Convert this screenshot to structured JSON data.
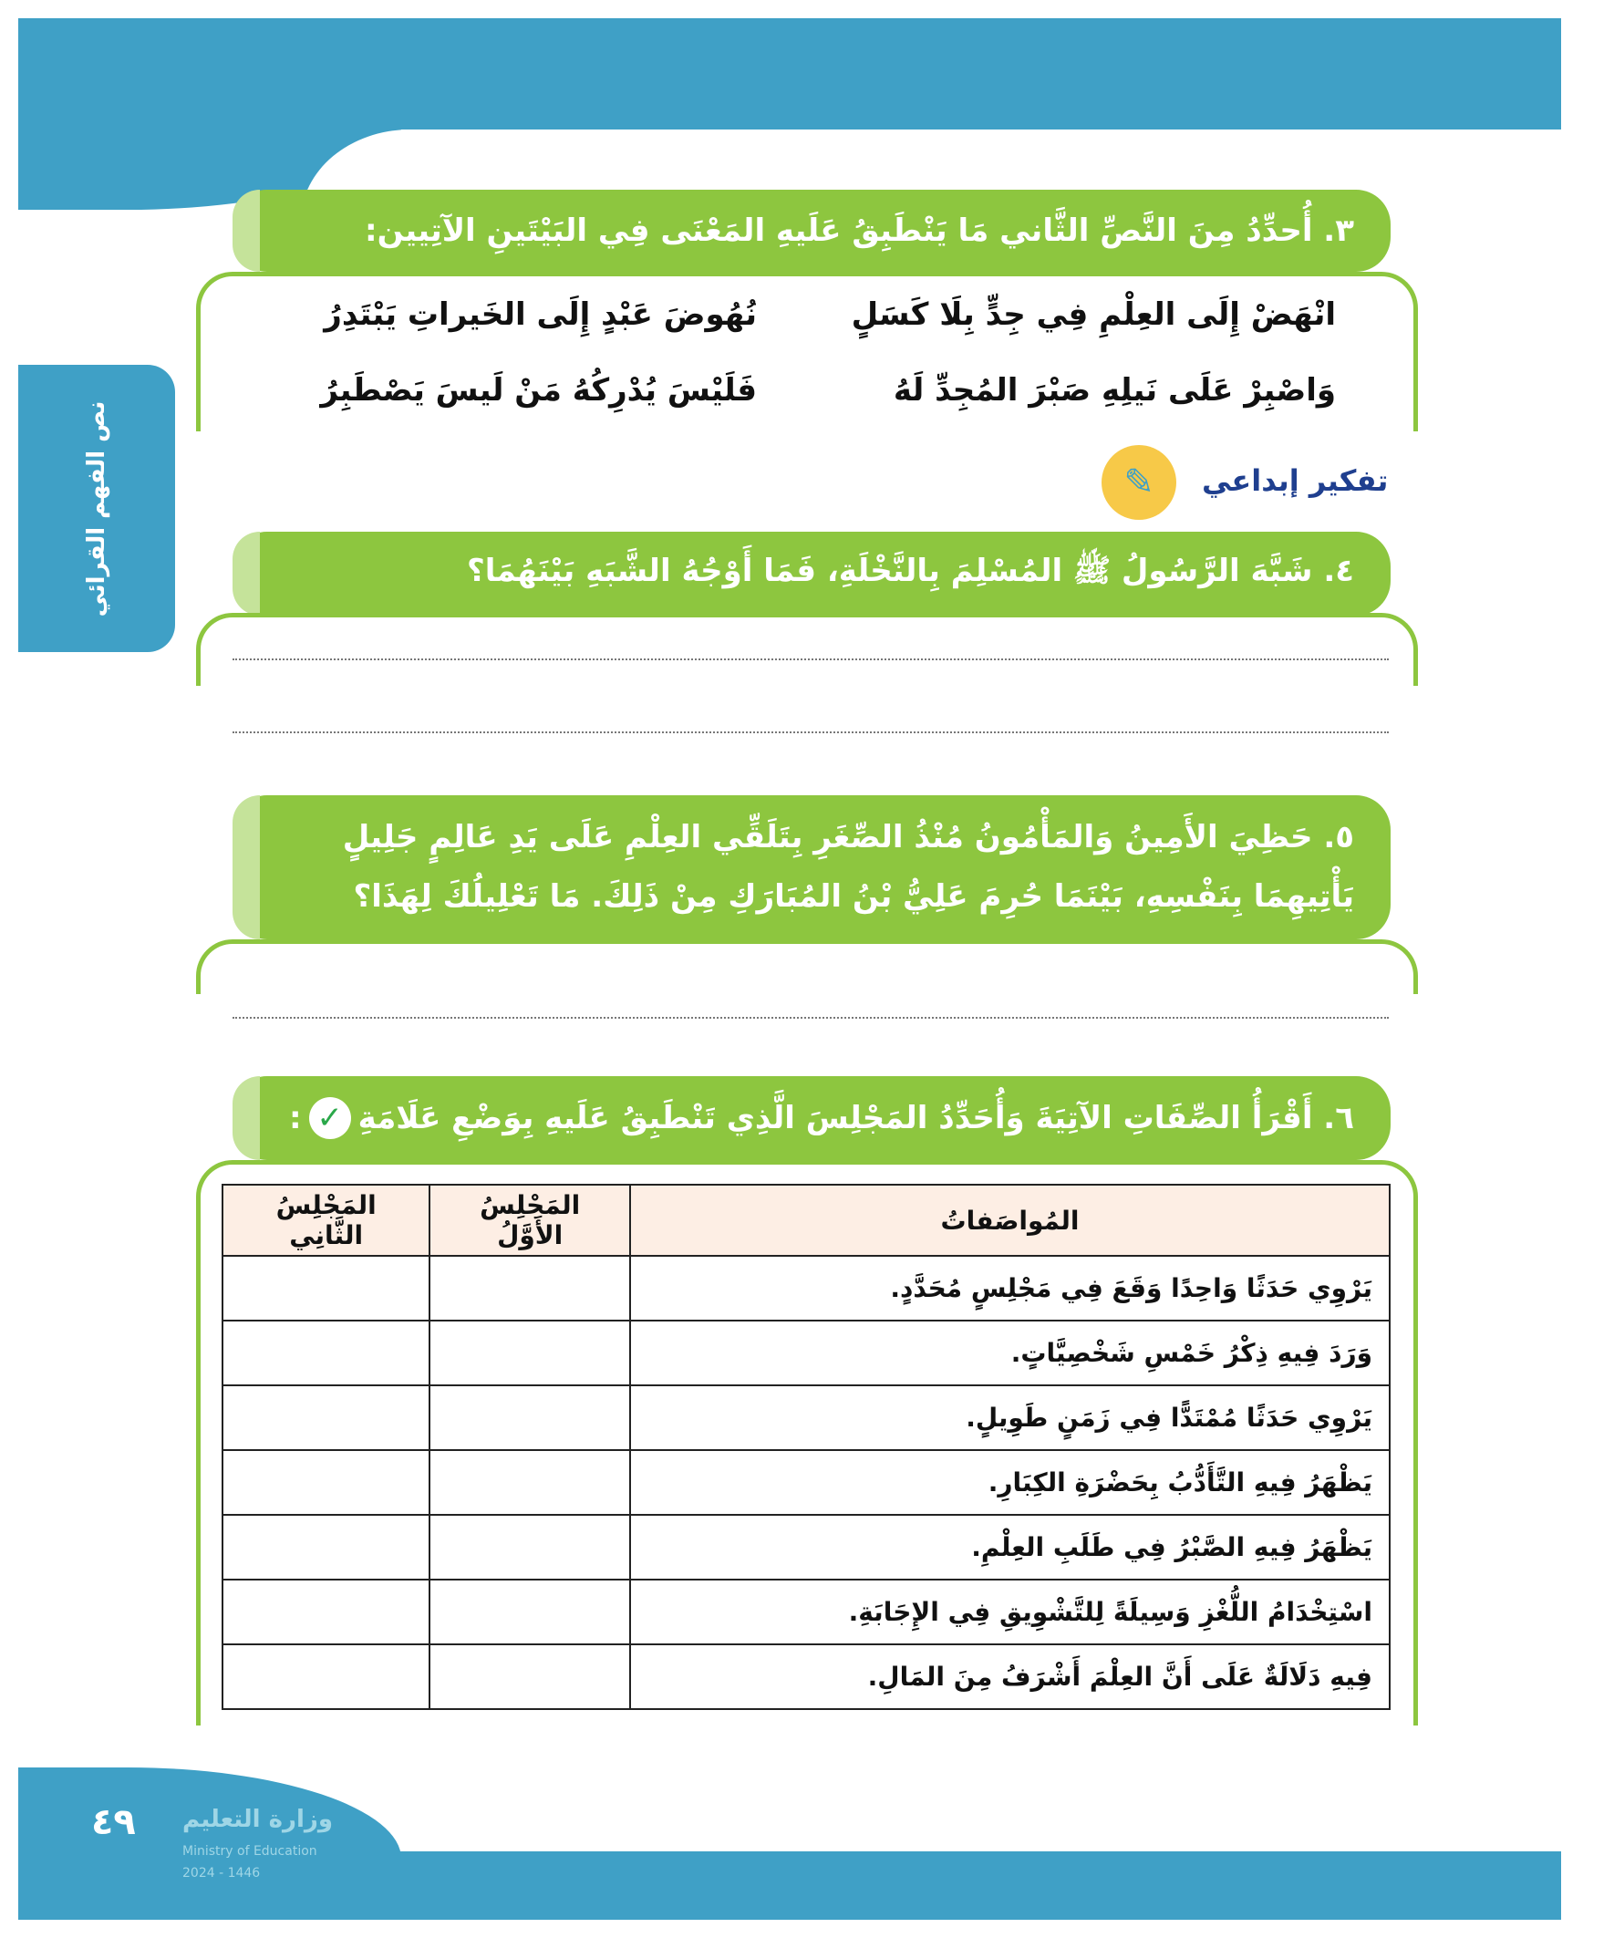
{
  "side_tab": "نص الفهم القرائي",
  "q3": {
    "title": "٣. أُحدِّدُ مِنَ النَّصِّ الثَّاني مَا يَنْطَبِقُ عَلَيهِ المَعْنَى فِي البَيْتَينِ الآتِيين:",
    "verses": [
      [
        "انْهَضْ إِلَى العِلْمِ فِي جِدٍّ بِلَا كَسَلٍ",
        "نُهُوضَ عَبْدٍ إِلَى الخَيراتِ يَبْتَدِرُ"
      ],
      [
        "وَاصْبِرْ عَلَى نَيلِهِ صَبْرَ المُجِدِّ لَهُ",
        "فَلَيْسَ يُدْرِكُهُ مَنْ لَيسَ يَصْطَبِرُ"
      ]
    ]
  },
  "creative": {
    "label": "تفكير إبداعي"
  },
  "q4": {
    "title": "٤. شَبَّهَ الرَّسُولُ ﷺ المُسْلِمَ بِالنَّخْلَةِ، فَمَا أَوْجُهُ الشَّبَهِ بَيْنَهُمَا؟"
  },
  "q5": {
    "title": "٥. حَظِيَ الأَمِينُ وَالمَأْمُونُ مُنْذُ الصِّغَرِ بِتَلَقِّي العِلْمِ عَلَى يَدِ عَالِمٍ جَلِيلٍ يَأْتِيهِمَا بِنَفْسِهِ، بَيْنَمَا حُرِمَ عَلِيُّ بْنُ المُبَارَكِ مِنْ ذَلِكَ. مَا تَعْلِيلُكَ لِهَذَا؟"
  },
  "q6": {
    "title": "٦. أَقْرَأُ الصِّفَاتِ الآتِيَةَ وَأُحَدِّدُ المَجْلِسَ الَّذِي تَنْطَبِقُ عَلَيهِ بِوَضْعِ عَلَامَةِ",
    "title_end": ":",
    "check_icon": "✓",
    "headers": [
      "المُواصَفاتُ",
      "المَجْلِسُ الأَوَّلُ",
      "المَجْلِسُ الثَّانِي"
    ],
    "rows": [
      "يَرْوِي حَدَثًا وَاحِدًا وَقَعَ فِي مَجْلِسٍ مُحَدَّدٍ.",
      "وَرَدَ فِيهِ ذِكْرُ خَمْسِ شَخْصِيَّاتٍ.",
      "يَرْوِي حَدَثًا مُمْتَدًّا فِي زَمَنٍ طَوِيلٍ.",
      "يَظْهَرُ فِيهِ التَّأَدُّبُ بِحَضْرَةِ الكِبَارِ.",
      "يَظْهَرُ فِيهِ الصَّبْرُ فِي طَلَبِ العِلْمِ.",
      "اسْتِخْدَامُ اللُّغْزِ وَسِيلَةً لِلتَّشْوِيقِ فِي الإِجَابَةِ.",
      "فِيهِ دَلَالَةٌ عَلَى أَنَّ العِلْمَ أَشْرَفُ مِنَ المَالِ."
    ]
  },
  "footer": {
    "page_number": "٤٩",
    "watermark": "وزارة التعليم",
    "watermark_en": "Ministry of Education",
    "watermark_year": "2024 - 1446"
  },
  "colors": {
    "green": "#8dc63f",
    "blue": "#3fa0c6",
    "header_fill": "#fdeee4"
  }
}
